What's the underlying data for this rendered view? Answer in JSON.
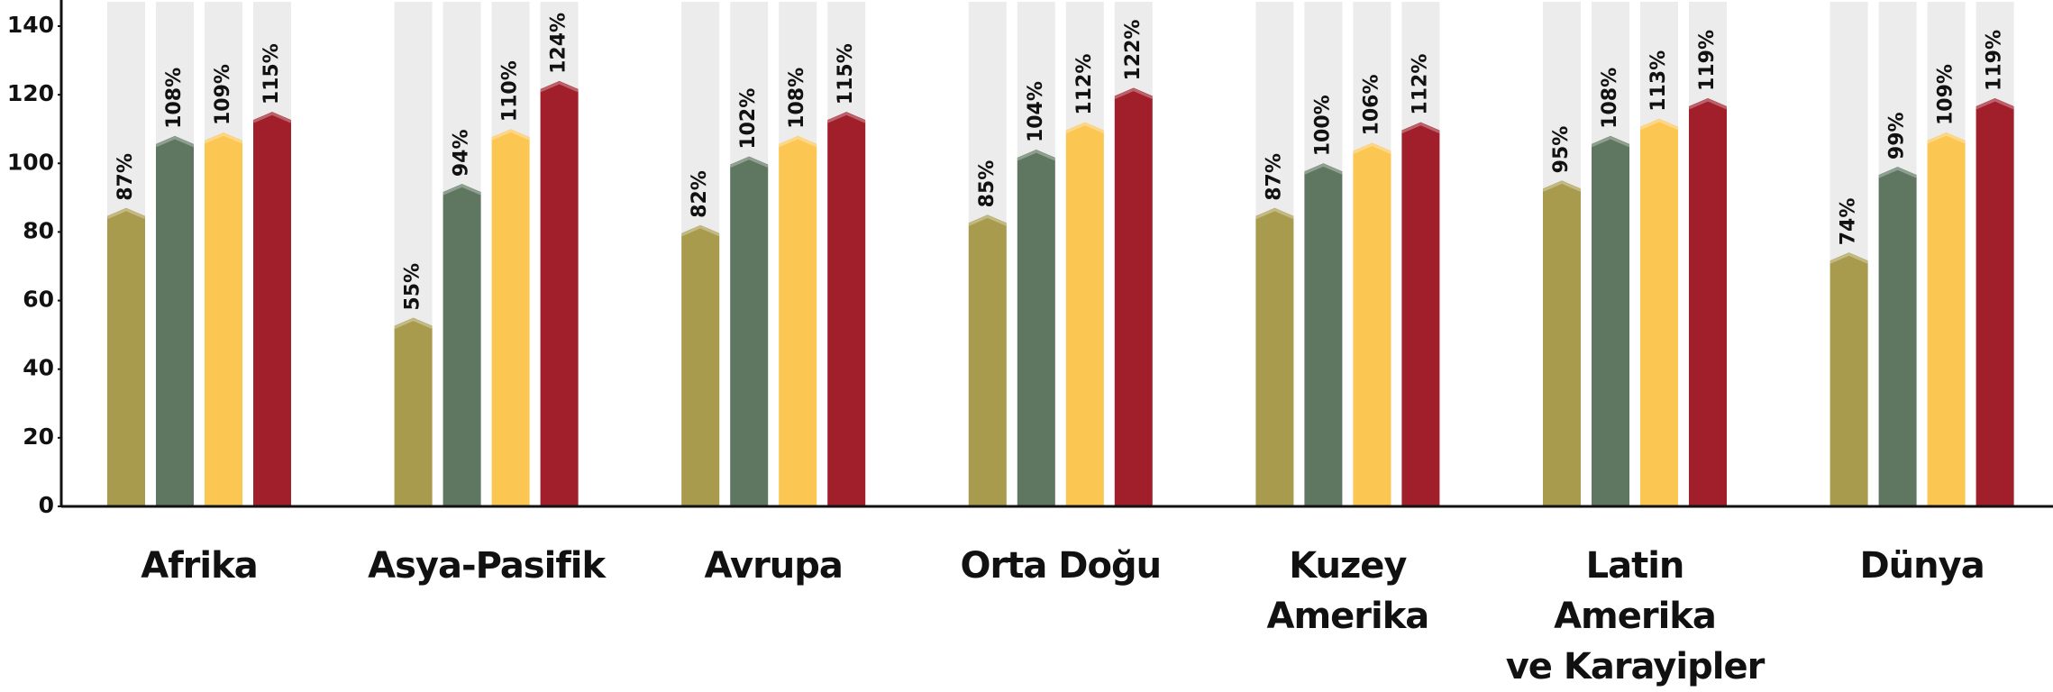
{
  "chart_data": {
    "type": "bar",
    "categories": [
      "Afrika",
      "Asya-Pasifik",
      "Avrupa",
      "Orta Doğu",
      "Kuzey\nAmerika",
      "Latin\nAmerika\nve Karayipler",
      "Dünya"
    ],
    "series": [
      {
        "color": "#a89b4e",
        "values": [
          87,
          55,
          82,
          85,
          87,
          95,
          74
        ],
        "value_labels": [
          "87%",
          "55%",
          "82%",
          "85%",
          "87%",
          "95%",
          "74%"
        ]
      },
      {
        "color": "#5f7760",
        "values": [
          108,
          94,
          102,
          104,
          100,
          108,
          99
        ],
        "value_labels": [
          "108%",
          "94%",
          "102%",
          "104%",
          "100%",
          "108%",
          "99%"
        ]
      },
      {
        "color": "#fcc653",
        "values": [
          109,
          110,
          108,
          112,
          106,
          113,
          109
        ],
        "value_labels": [
          "109%",
          "110%",
          "108%",
          "112%",
          "106%",
          "113%",
          "109%"
        ]
      },
      {
        "color": "#a01f2b",
        "values": [
          115,
          124,
          115,
          122,
          112,
          119,
          119
        ],
        "value_labels": [
          "115%",
          "124%",
          "115%",
          "122%",
          "112%",
          "119%",
          "119%"
        ]
      }
    ],
    "ylim": [
      0,
      140
    ],
    "yticks": [
      0,
      20,
      40,
      60,
      80,
      100,
      120,
      140
    ]
  }
}
